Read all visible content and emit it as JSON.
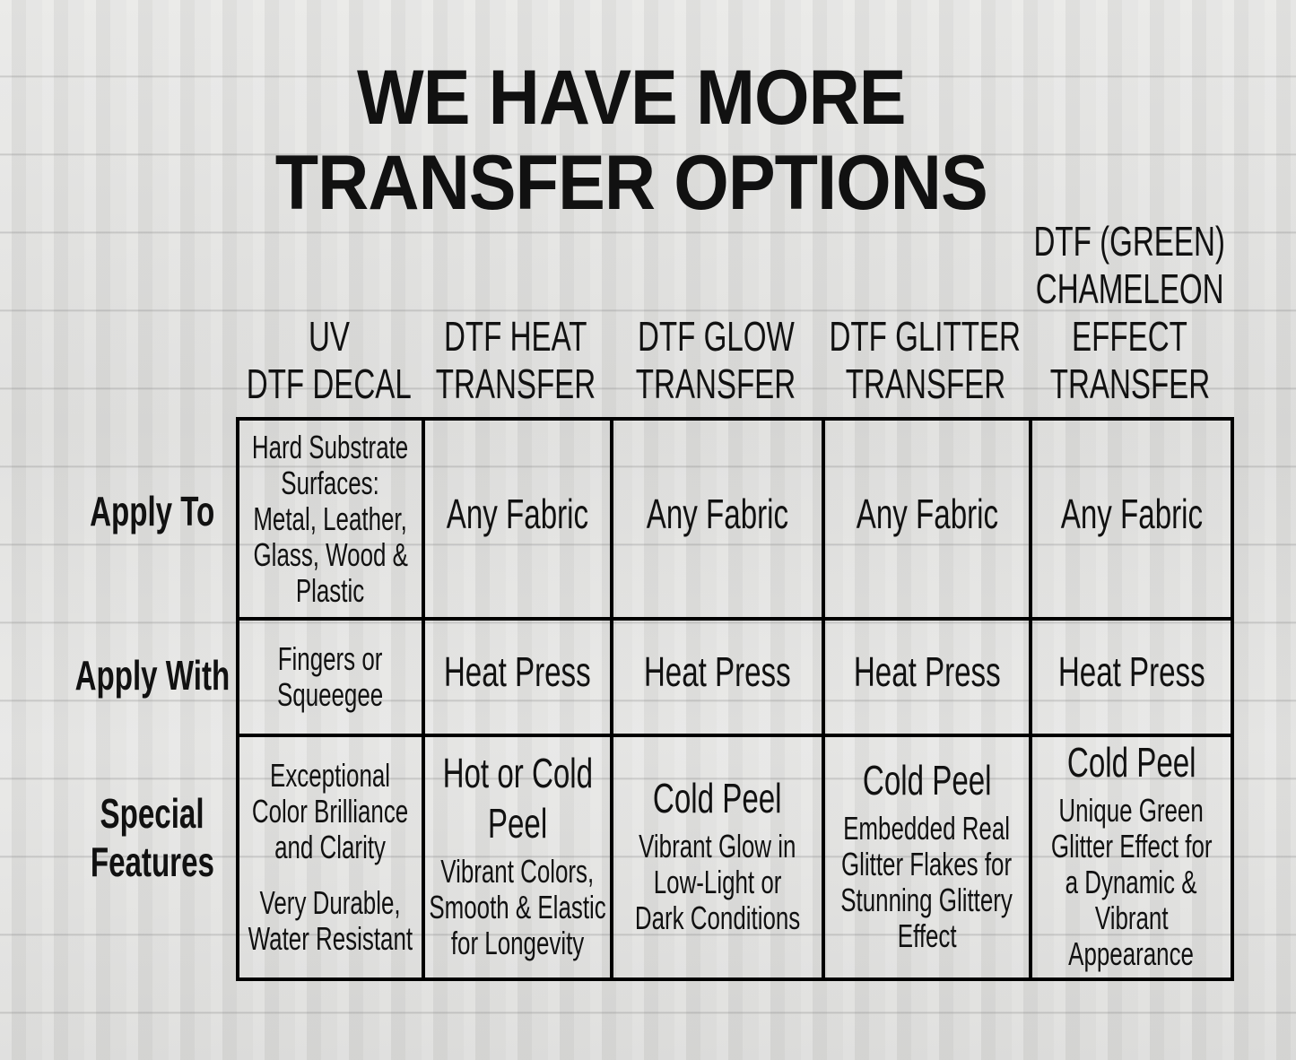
{
  "title": {
    "line1": "WE HAVE MORE",
    "line2": "TRANSFER OPTIONS"
  },
  "columns": [
    {
      "lines": [
        "UV",
        "DTF DECAL"
      ]
    },
    {
      "lines": [
        "DTF HEAT",
        "TRANSFER"
      ]
    },
    {
      "lines": [
        "DTF GLOW",
        "TRANSFER"
      ]
    },
    {
      "lines": [
        "DTF GLITTER",
        "TRANSFER"
      ]
    },
    {
      "lines": [
        "DTF  (GREEN)",
        "CHAMELEON",
        "EFFECT",
        "TRANSFER"
      ]
    }
  ],
  "rows": [
    {
      "label": [
        "Apply To"
      ],
      "cells": [
        {
          "lines": [
            "Hard Substrate",
            "Surfaces:",
            "Metal, Leather,",
            "Glass, Wood &",
            "Plastic"
          ]
        },
        {
          "lines": [
            "Any Fabric"
          ]
        },
        {
          "lines": [
            "Any Fabric"
          ]
        },
        {
          "lines": [
            "Any Fabric"
          ]
        },
        {
          "lines": [
            "Any Fabric"
          ]
        }
      ]
    },
    {
      "label": [
        "Apply With"
      ],
      "cells": [
        {
          "lines": [
            "Fingers or",
            "Squeegee"
          ]
        },
        {
          "lines": [
            "Heat Press"
          ]
        },
        {
          "lines": [
            "Heat Press"
          ]
        },
        {
          "lines": [
            "Heat Press"
          ]
        },
        {
          "lines": [
            "Heat Press"
          ]
        }
      ]
    },
    {
      "label": [
        "Special",
        "Features"
      ],
      "cells": [
        {
          "head": [],
          "lines": [
            "Exceptional",
            "Color Brilliance",
            "and Clarity"
          ],
          "extra": [
            "Very Durable,",
            "Water Resistant"
          ]
        },
        {
          "head": [
            "Hot or Cold",
            "Peel"
          ],
          "lines": [
            "Vibrant Colors,",
            "Smooth & Elastic",
            "for Longevity"
          ]
        },
        {
          "head": [
            "Cold Peel"
          ],
          "lines": [
            "Vibrant Glow in",
            "Low-Light or",
            "Dark Conditions"
          ]
        },
        {
          "head": [
            "Cold Peel"
          ],
          "lines": [
            "Embedded Real",
            "Glitter Flakes for",
            "Stunning Glittery",
            "Effect"
          ]
        },
        {
          "head": [
            "Cold Peel"
          ],
          "lines": [
            "Unique Green",
            "Glitter Effect for",
            "a Dynamic &",
            "Vibrant",
            "Appearance"
          ]
        }
      ]
    }
  ]
}
